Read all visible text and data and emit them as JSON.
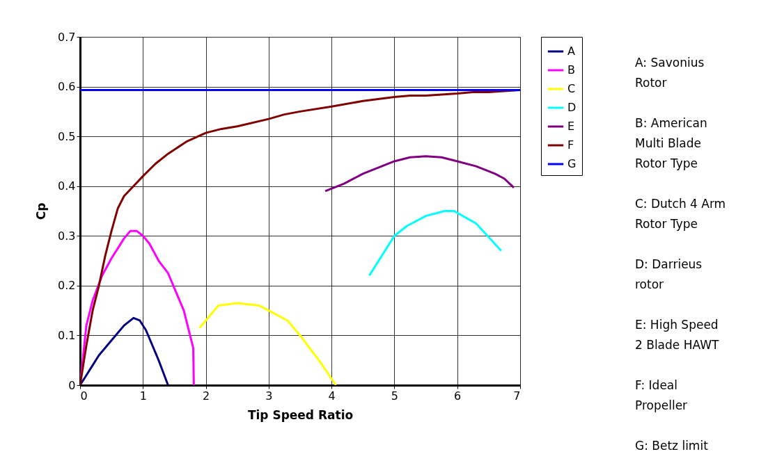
{
  "chart_data": {
    "type": "line",
    "xlabel": "Tip Speed Ratio",
    "ylabel": "Cp",
    "xlim": [
      0,
      7
    ],
    "ylim": [
      0,
      0.7
    ],
    "xticks": [
      0,
      1,
      2,
      3,
      4,
      5,
      6,
      7
    ],
    "yticks": [
      0,
      0.1,
      0.2,
      0.3,
      0.4,
      0.5,
      0.6,
      0.7
    ],
    "grid": true,
    "legend": "right",
    "marker": "none",
    "line_style": "solid",
    "series": [
      {
        "name": "A",
        "color": "#000080",
        "x": [
          0,
          0.1,
          0.2,
          0.3,
          0.5,
          0.7,
          0.85,
          0.95,
          1.05,
          1.15,
          1.25,
          1.4
        ],
        "values": [
          0,
          0.02,
          0.04,
          0.06,
          0.09,
          0.12,
          0.135,
          0.13,
          0.11,
          0.08,
          0.05,
          0
        ]
      },
      {
        "name": "B",
        "color": "#ff00ff",
        "x": [
          0,
          0.05,
          0.1,
          0.2,
          0.35,
          0.5,
          0.7,
          0.8,
          0.9,
          1.0,
          1.1,
          1.25,
          1.4,
          1.55,
          1.65,
          1.75,
          1.8,
          1.81
        ],
        "values": [
          0,
          0.06,
          0.12,
          0.17,
          0.22,
          0.255,
          0.295,
          0.31,
          0.31,
          0.3,
          0.285,
          0.25,
          0.225,
          0.18,
          0.15,
          0.1,
          0.075,
          0
        ]
      },
      {
        "name": "C",
        "color": "#ffff00",
        "x": [
          1.9,
          2.0,
          2.1,
          2.2,
          2.5,
          2.85,
          3.0,
          3.3,
          3.5,
          3.8,
          4.07
        ],
        "values": [
          0.115,
          0.13,
          0.145,
          0.16,
          0.165,
          0.16,
          0.15,
          0.13,
          0.1,
          0.05,
          0
        ]
      },
      {
        "name": "D",
        "color": "#00ffff",
        "x": [
          4.6,
          4.8,
          5.0,
          5.2,
          5.5,
          5.8,
          5.95,
          6.3,
          6.7
        ],
        "values": [
          0.22,
          0.26,
          0.3,
          0.32,
          0.34,
          0.35,
          0.35,
          0.325,
          0.27
        ]
      },
      {
        "name": "E",
        "color": "#800080",
        "x": [
          3.9,
          4.2,
          4.5,
          5.0,
          5.25,
          5.5,
          5.75,
          6.0,
          6.3,
          6.6,
          6.75,
          6.9
        ],
        "values": [
          0.39,
          0.405,
          0.425,
          0.45,
          0.458,
          0.46,
          0.458,
          0.45,
          0.44,
          0.425,
          0.415,
          0.397
        ]
      },
      {
        "name": "F",
        "color": "#800000",
        "x": [
          0,
          0.1,
          0.2,
          0.3,
          0.4,
          0.5,
          0.6,
          0.7,
          0.85,
          1.0,
          1.2,
          1.4,
          1.7,
          2.0,
          2.25,
          2.5,
          3.0,
          3.25,
          3.5,
          4.0,
          4.5,
          5.0,
          5.25,
          5.5,
          6.0,
          6.25,
          6.5,
          7.0
        ],
        "values": [
          0,
          0.08,
          0.15,
          0.2,
          0.26,
          0.31,
          0.355,
          0.38,
          0.4,
          0.42,
          0.445,
          0.465,
          0.49,
          0.507,
          0.515,
          0.52,
          0.535,
          0.544,
          0.55,
          0.56,
          0.571,
          0.579,
          0.582,
          0.582,
          0.586,
          0.589,
          0.589,
          0.593
        ]
      },
      {
        "name": "G",
        "color": "#0000ff",
        "x": [
          0,
          7
        ],
        "values": [
          0.593,
          0.593
        ]
      }
    ],
    "annotations": [
      "A: Savonius Rotor",
      "B: American Multi Blade Rotor Type",
      "C: Dutch 4 Arm Rotor Type",
      "D: Darrieus rotor",
      "E: High Speed 2 Blade HAWT",
      "F: Ideal Propeller",
      "G: Betz limit"
    ]
  }
}
